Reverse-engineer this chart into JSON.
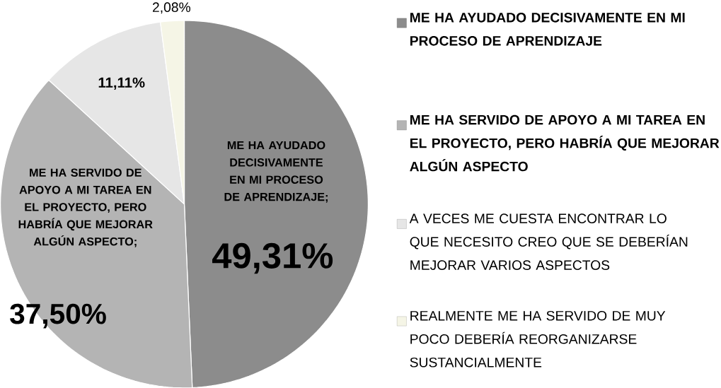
{
  "chart_data": {
    "type": "pie",
    "categories": [
      "ME HA AYUDADO DECISIVAMENTE EN MI PROCESO DE APRENDIZAJE",
      "ME HA SERVIDO DE APOYO A MI TAREA EN EL PROYECTO, PERO HABRÍA QUE MEJORAR ALGÚN ASPECTO",
      "A VECES ME CUESTA ENCONTRAR LO QUE NECESITO CREO QUE SE DEBERÍAN MEJORAR VARIOS ASPECTOS",
      "REALMENTE ME HA SERVIDO DE MUY POCO DEBERÍA REORGANIZARSE SUSTANCIALMENTE"
    ],
    "values": [
      49.31,
      37.5,
      11.11,
      2.08
    ],
    "value_labels": [
      "49,31%",
      "37,50%",
      "11,11%",
      "2,08%"
    ],
    "colors": [
      "#8c8c8c",
      "#b4b4b4",
      "#e6e6e6",
      "#f5f5e6"
    ],
    "annotations": [
      "ME HA AYUDADO DECISIVAMENTE EN MI PROCESO DE APRENDIZAJE;",
      "ME HA SERVIDO DE APOYO A MI TAREA EN EL PROYECTO, PERO HABRÍA QUE MEJORAR ALGÚN ASPECTO;"
    ],
    "legend": "right"
  }
}
